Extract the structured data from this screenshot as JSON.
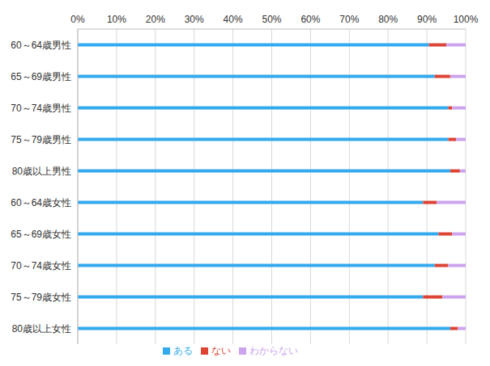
{
  "chart_data": {
    "type": "bar",
    "orientation": "horizontal",
    "stacked": true,
    "grid": true,
    "legend": "bottom",
    "categories": [
      "60～64歳男性",
      "65～69歳男性",
      "70～74歳男性",
      "75～79歳男性",
      "80歳以上男性",
      "60～64歳女性",
      "65～69歳女性",
      "70～74歳女性",
      "75～79歳女性",
      "80歳以上女性"
    ],
    "series": [
      {
        "name": "ある",
        "color": "#33aaee",
        "values": [
          90.5,
          92,
          95.5,
          95.5,
          96,
          89,
          93,
          92,
          89,
          96
        ]
      },
      {
        "name": "ない",
        "color": "#dd4433",
        "values": [
          4.5,
          4,
          1,
          2,
          2.5,
          3.5,
          3.5,
          3.5,
          5,
          2
        ]
      },
      {
        "name": "わからない",
        "color": "#cca4ee",
        "values": [
          5,
          4,
          3.5,
          2.5,
          1.5,
          7.5,
          3.5,
          4.5,
          6,
          2
        ]
      }
    ],
    "xlim": [
      0,
      100
    ],
    "xticks": [
      {
        "value": 0,
        "label": "0%"
      },
      {
        "value": 10,
        "label": "10%"
      },
      {
        "value": 20,
        "label": "20%"
      },
      {
        "value": 30,
        "label": "30%"
      },
      {
        "value": 40,
        "label": "40%"
      },
      {
        "value": 50,
        "label": "50%"
      },
      {
        "value": 60,
        "label": "60%"
      },
      {
        "value": 70,
        "label": "70%"
      },
      {
        "value": 80,
        "label": "80%"
      },
      {
        "value": 90,
        "label": "90%"
      },
      {
        "value": 100,
        "label": "100%"
      }
    ]
  }
}
